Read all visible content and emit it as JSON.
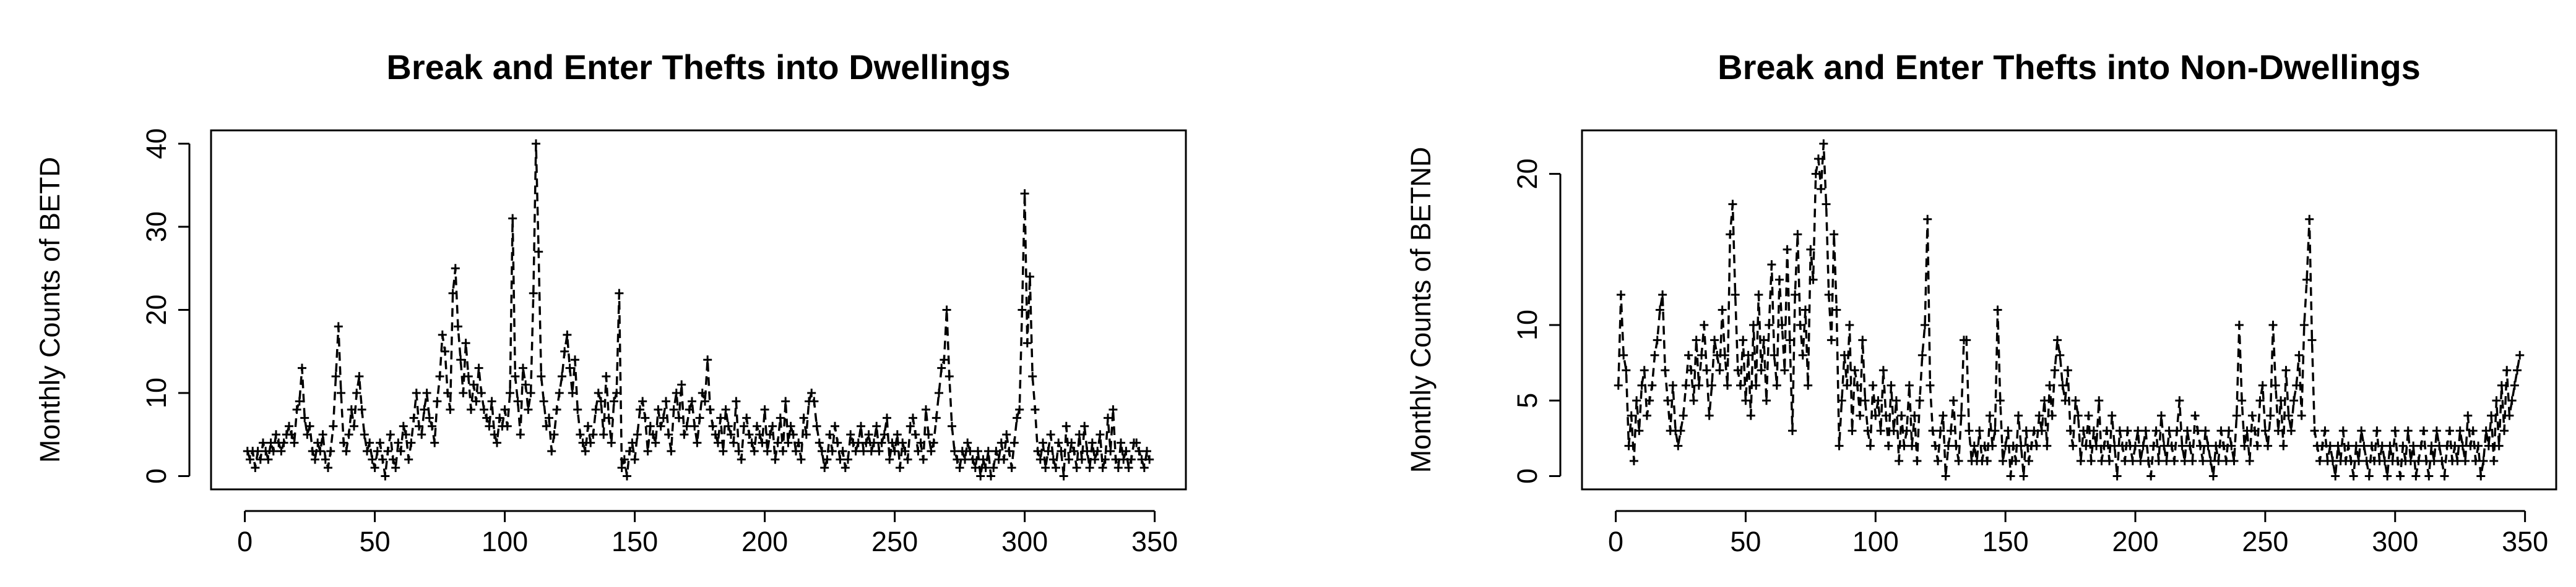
{
  "chart_data": [
    {
      "type": "line",
      "title": "Break and Enter Thefts into Dwellings",
      "ylabel": "Monthly Counts of BETD",
      "x": [
        1,
        2,
        3,
        4,
        5,
        6,
        7,
        8,
        9,
        10,
        11,
        12,
        13,
        14,
        15,
        16,
        17,
        18,
        19,
        20,
        21,
        22,
        23,
        24,
        25,
        26,
        27,
        28,
        29,
        30,
        31,
        32,
        33,
        34,
        35,
        36,
        37,
        38,
        39,
        40,
        41,
        42,
        43,
        44,
        45,
        46,
        47,
        48,
        49,
        50,
        51,
        52,
        53,
        54,
        55,
        56,
        57,
        58,
        59,
        60,
        61,
        62,
        63,
        64,
        65,
        66,
        67,
        68,
        69,
        70,
        71,
        72,
        73,
        74,
        75,
        76,
        77,
        78,
        79,
        80,
        81,
        82,
        83,
        84,
        85,
        86,
        87,
        88,
        89,
        90,
        91,
        92,
        93,
        94,
        95,
        96,
        97,
        98,
        99,
        100,
        101,
        102,
        103,
        104,
        105,
        106,
        107,
        108,
        109,
        110,
        111,
        112,
        113,
        114,
        115,
        116,
        117,
        118,
        119,
        120,
        121,
        122,
        123,
        124,
        125,
        126,
        127,
        128,
        129,
        130,
        131,
        132,
        133,
        134,
        135,
        136,
        137,
        138,
        139,
        140,
        141,
        142,
        143,
        144,
        145,
        146,
        147,
        148,
        149,
        150,
        151,
        152,
        153,
        154,
        155,
        156,
        157,
        158,
        159,
        160,
        161,
        162,
        163,
        164,
        165,
        166,
        167,
        168,
        169,
        170,
        171,
        172,
        173,
        174,
        175,
        176,
        177,
        178,
        179,
        180,
        181,
        182,
        183,
        184,
        185,
        186,
        187,
        188,
        189,
        190,
        191,
        192,
        193,
        194,
        195,
        196,
        197,
        198,
        199,
        200,
        201,
        202,
        203,
        204,
        205,
        206,
        207,
        208,
        209,
        210,
        211,
        212,
        213,
        214,
        215,
        216,
        217,
        218,
        219,
        220,
        221,
        222,
        223,
        224,
        225,
        226,
        227,
        228,
        229,
        230,
        231,
        232,
        233,
        234,
        235,
        236,
        237,
        238,
        239,
        240,
        241,
        242,
        243,
        244,
        245,
        246,
        247,
        248,
        249,
        250,
        251,
        252,
        253,
        254,
        255,
        256,
        257,
        258,
        259,
        260,
        261,
        262,
        263,
        264,
        265,
        266,
        267,
        268,
        269,
        270,
        271,
        272,
        273,
        274,
        275,
        276,
        277,
        278,
        279,
        280,
        281,
        282,
        283,
        284,
        285,
        286,
        287,
        288,
        289,
        290,
        291,
        292,
        293,
        294,
        295,
        296,
        297,
        298,
        299,
        300,
        301,
        302,
        303,
        304,
        305,
        306,
        307,
        308,
        309,
        310,
        311,
        312,
        313,
        314,
        315,
        316,
        317,
        318,
        319,
        320,
        321,
        322,
        323,
        324,
        325,
        326,
        327,
        328,
        329,
        330,
        331,
        332,
        333,
        334,
        335,
        336,
        337,
        338,
        339,
        340,
        341,
        342,
        343,
        344,
        345,
        346,
        347,
        348
      ],
      "values": [
        3,
        2,
        3,
        1,
        3,
        2,
        4,
        3,
        2,
        4,
        3,
        5,
        4,
        3,
        4,
        5,
        6,
        5,
        4,
        8,
        9,
        13,
        7,
        5,
        6,
        3,
        2,
        4,
        3,
        5,
        2,
        1,
        3,
        6,
        12,
        18,
        10,
        4,
        3,
        5,
        8,
        6,
        10,
        12,
        8,
        5,
        3,
        4,
        2,
        1,
        3,
        4,
        2,
        0,
        3,
        5,
        2,
        1,
        4,
        3,
        6,
        5,
        2,
        4,
        7,
        10,
        6,
        5,
        8,
        10,
        7,
        6,
        4,
        9,
        12,
        17,
        15,
        10,
        8,
        22,
        25,
        18,
        14,
        10,
        16,
        12,
        8,
        11,
        9,
        13,
        10,
        8,
        7,
        6,
        9,
        5,
        4,
        7,
        6,
        8,
        6,
        10,
        31,
        12,
        9,
        5,
        13,
        11,
        8,
        10,
        22,
        40,
        27,
        12,
        9,
        6,
        7,
        3,
        5,
        8,
        10,
        12,
        15,
        17,
        13,
        10,
        14,
        8,
        5,
        4,
        3,
        6,
        4,
        5,
        8,
        10,
        9,
        5,
        12,
        7,
        4,
        9,
        10,
        22,
        1,
        2,
        0,
        3,
        4,
        2,
        5,
        8,
        9,
        7,
        3,
        6,
        5,
        4,
        8,
        6,
        7,
        9,
        5,
        3,
        8,
        10,
        7,
        11,
        5,
        6,
        8,
        9,
        6,
        4,
        7,
        10,
        9,
        14,
        8,
        6,
        5,
        4,
        7,
        3,
        8,
        6,
        5,
        4,
        9,
        3,
        2,
        6,
        7,
        5,
        4,
        3,
        6,
        5,
        4,
        8,
        3,
        5,
        6,
        2,
        4,
        7,
        3,
        9,
        4,
        6,
        5,
        3,
        4,
        2,
        7,
        5,
        9,
        10,
        9,
        6,
        4,
        3,
        1,
        2,
        5,
        3,
        6,
        4,
        2,
        3,
        1,
        2,
        5,
        4,
        3,
        4,
        6,
        3,
        4,
        5,
        3,
        4,
        6,
        3,
        4,
        5,
        7,
        2,
        4,
        3,
        5,
        1,
        4,
        3,
        2,
        6,
        7,
        5,
        3,
        4,
        2,
        8,
        5,
        3,
        4,
        7,
        10,
        13,
        14,
        20,
        12,
        6,
        3,
        2,
        1,
        3,
        2,
        4,
        3,
        2,
        1,
        3,
        0,
        2,
        1,
        3,
        0,
        1,
        3,
        2,
        4,
        2,
        5,
        3,
        1,
        4,
        7,
        8,
        20,
        34,
        16,
        24,
        12,
        8,
        3,
        2,
        4,
        1,
        3,
        5,
        2,
        1,
        4,
        3,
        0,
        6,
        2,
        4,
        3,
        1,
        5,
        2,
        6,
        3,
        1,
        4,
        2,
        3,
        5,
        1,
        2,
        7,
        3,
        8,
        2,
        1,
        4,
        2,
        3,
        1,
        2,
        4,
        4,
        3,
        2,
        1,
        3,
        2
      ],
      "color": "#000000",
      "line_style": "dashed",
      "marker": "+",
      "xlim": [
        -13,
        362
      ],
      "xticks": [
        0,
        50,
        100,
        150,
        200,
        250,
        300,
        350
      ],
      "ylim": [
        -1.6,
        41.6
      ],
      "yticks": [
        0,
        10,
        20,
        30,
        40
      ]
    },
    {
      "type": "line",
      "title": "Break and Enter Thefts into Non-Dwellings",
      "ylabel": "Monthly Counts of BETND",
      "x": [
        1,
        2,
        3,
        4,
        5,
        6,
        7,
        8,
        9,
        10,
        11,
        12,
        13,
        14,
        15,
        16,
        17,
        18,
        19,
        20,
        21,
        22,
        23,
        24,
        25,
        26,
        27,
        28,
        29,
        30,
        31,
        32,
        33,
        34,
        35,
        36,
        37,
        38,
        39,
        40,
        41,
        42,
        43,
        44,
        45,
        46,
        47,
        48,
        49,
        50,
        51,
        52,
        53,
        54,
        55,
        56,
        57,
        58,
        59,
        60,
        61,
        62,
        63,
        64,
        65,
        66,
        67,
        68,
        69,
        70,
        71,
        72,
        73,
        74,
        75,
        76,
        77,
        78,
        79,
        80,
        81,
        82,
        83,
        84,
        85,
        86,
        87,
        88,
        89,
        90,
        91,
        92,
        93,
        94,
        95,
        96,
        97,
        98,
        99,
        100,
        101,
        102,
        103,
        104,
        105,
        106,
        107,
        108,
        109,
        110,
        111,
        112,
        113,
        114,
        115,
        116,
        117,
        118,
        119,
        120,
        121,
        122,
        123,
        124,
        125,
        126,
        127,
        128,
        129,
        130,
        131,
        132,
        133,
        134,
        135,
        136,
        137,
        138,
        139,
        140,
        141,
        142,
        143,
        144,
        145,
        146,
        147,
        148,
        149,
        150,
        151,
        152,
        153,
        154,
        155,
        156,
        157,
        158,
        159,
        160,
        161,
        162,
        163,
        164,
        165,
        166,
        167,
        168,
        169,
        170,
        171,
        172,
        173,
        174,
        175,
        176,
        177,
        178,
        179,
        180,
        181,
        182,
        183,
        184,
        185,
        186,
        187,
        188,
        189,
        190,
        191,
        192,
        193,
        194,
        195,
        196,
        197,
        198,
        199,
        200,
        201,
        202,
        203,
        204,
        205,
        206,
        207,
        208,
        209,
        210,
        211,
        212,
        213,
        214,
        215,
        216,
        217,
        218,
        219,
        220,
        221,
        222,
        223,
        224,
        225,
        226,
        227,
        228,
        229,
        230,
        231,
        232,
        233,
        234,
        235,
        236,
        237,
        238,
        239,
        240,
        241,
        242,
        243,
        244,
        245,
        246,
        247,
        248,
        249,
        250,
        251,
        252,
        253,
        254,
        255,
        256,
        257,
        258,
        259,
        260,
        261,
        262,
        263,
        264,
        265,
        266,
        267,
        268,
        269,
        270,
        271,
        272,
        273,
        274,
        275,
        276,
        277,
        278,
        279,
        280,
        281,
        282,
        283,
        284,
        285,
        286,
        287,
        288,
        289,
        290,
        291,
        292,
        293,
        294,
        295,
        296,
        297,
        298,
        299,
        300,
        301,
        302,
        303,
        304,
        305,
        306,
        307,
        308,
        309,
        310,
        311,
        312,
        313,
        314,
        315,
        316,
        317,
        318,
        319,
        320,
        321,
        322,
        323,
        324,
        325,
        326,
        327,
        328,
        329,
        330,
        331,
        332,
        333,
        334,
        335,
        336,
        337,
        338,
        339,
        340,
        341,
        342,
        343,
        344,
        345,
        346,
        347,
        348
      ],
      "values": [
        6,
        12,
        8,
        7,
        2,
        4,
        1,
        5,
        3,
        6,
        7,
        4,
        5,
        6,
        8,
        9,
        11,
        12,
        7,
        5,
        3,
        6,
        3,
        2,
        3,
        4,
        6,
        8,
        7,
        5,
        9,
        6,
        8,
        10,
        7,
        4,
        6,
        9,
        8,
        7,
        11,
        8,
        6,
        16,
        18,
        12,
        7,
        6,
        9,
        5,
        8,
        4,
        10,
        6,
        12,
        7,
        9,
        5,
        10,
        14,
        8,
        6,
        13,
        10,
        7,
        15,
        9,
        3,
        12,
        16,
        10,
        8,
        11,
        6,
        15,
        13,
        20,
        21,
        19,
        22,
        18,
        12,
        9,
        16,
        11,
        2,
        5,
        8,
        6,
        10,
        3,
        7,
        6,
        4,
        9,
        5,
        3,
        2,
        6,
        4,
        5,
        3,
        7,
        4,
        2,
        6,
        3,
        5,
        1,
        4,
        2,
        3,
        6,
        2,
        4,
        1,
        5,
        8,
        10,
        17,
        6,
        3,
        2,
        1,
        3,
        4,
        0,
        2,
        3,
        5,
        2,
        1,
        4,
        9,
        9,
        3,
        1,
        2,
        1,
        3,
        1,
        2,
        1,
        4,
        2,
        3,
        11,
        5,
        1,
        2,
        3,
        0,
        2,
        1,
        4,
        2,
        0,
        3,
        1,
        2,
        3,
        2,
        4,
        3,
        5,
        2,
        6,
        4,
        7,
        9,
        8,
        6,
        5,
        7,
        3,
        2,
        5,
        4,
        1,
        3,
        2,
        4,
        1,
        3,
        2,
        5,
        1,
        2,
        3,
        1,
        4,
        2,
        0,
        3,
        2,
        1,
        3,
        2,
        1,
        2,
        3,
        1,
        2,
        3,
        1,
        0,
        2,
        3,
        1,
        4,
        2,
        1,
        3,
        2,
        1,
        3,
        5,
        2,
        1,
        3,
        2,
        1,
        4,
        3,
        2,
        1,
        3,
        2,
        1,
        0,
        2,
        1,
        3,
        2,
        1,
        3,
        2,
        1,
        4,
        10,
        5,
        2,
        3,
        1,
        4,
        3,
        2,
        5,
        6,
        3,
        2,
        4,
        10,
        6,
        3,
        5,
        2,
        7,
        4,
        3,
        5,
        6,
        8,
        4,
        10,
        13,
        17,
        9,
        3,
        2,
        1,
        2,
        3,
        1,
        2,
        1,
        0,
        2,
        1,
        3,
        1,
        2,
        1,
        0,
        2,
        1,
        3,
        2,
        1,
        0,
        2,
        1,
        3,
        1,
        2,
        1,
        0,
        2,
        1,
        3,
        1,
        0,
        2,
        1,
        3,
        1,
        2,
        0,
        1,
        2,
        3,
        1,
        0,
        2,
        1,
        3,
        2,
        1,
        0,
        2,
        3,
        1,
        2,
        1,
        3,
        2,
        1,
        4,
        2,
        3,
        1,
        2,
        0,
        1,
        3,
        2,
        4,
        1,
        5,
        2,
        6,
        3,
        7,
        4,
        5,
        6,
        7,
        8
      ],
      "color": "#000000",
      "line_style": "dashed",
      "marker": "+",
      "xlim": [
        -13,
        362
      ],
      "xticks": [
        0,
        50,
        100,
        150,
        200,
        250,
        300,
        350
      ],
      "ylim": [
        -0.88,
        22.88
      ],
      "yticks": [
        0,
        5,
        10,
        20
      ]
    }
  ]
}
